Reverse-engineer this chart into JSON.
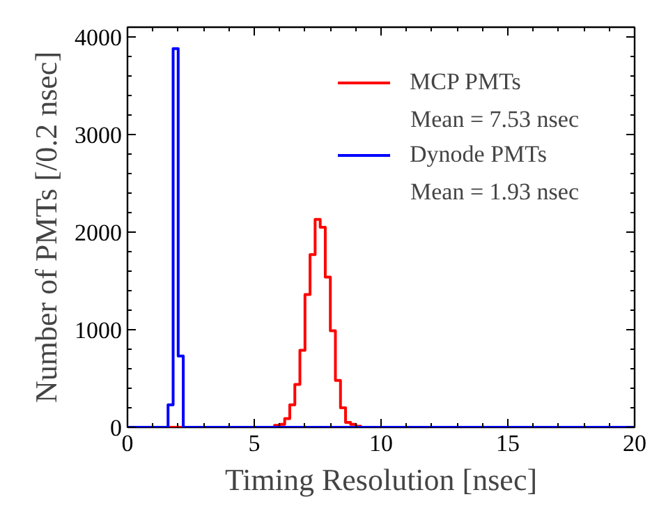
{
  "chart_data": {
    "type": "histogram",
    "xlabel": "Timing Resolution [nsec]",
    "ylabel": "Number of PMTs [/0.2 nsec]",
    "bins": [
      0,
      0.2,
      0.4,
      0.6,
      0.8,
      1,
      1.2,
      1.4,
      1.6,
      1.8,
      2,
      2.2,
      2.4,
      2.6,
      2.8,
      3,
      3.2,
      3.4,
      3.6,
      3.8,
      4,
      4.2,
      4.4,
      4.6,
      4.8,
      5,
      5.2,
      5.4,
      5.6,
      5.8,
      6,
      6.2,
      6.4,
      6.6,
      6.8,
      7,
      7.2,
      7.4,
      7.6,
      7.8,
      8,
      8.2,
      8.4,
      8.6,
      8.8,
      9,
      9.2,
      9.4,
      9.6,
      9.8,
      10,
      10.2,
      10.4,
      10.6,
      10.8,
      11,
      11.2,
      11.4,
      11.6,
      11.8,
      12,
      12.2,
      12.4,
      12.6,
      12.8,
      13,
      13.2,
      13.4,
      13.6,
      13.8,
      14,
      14.2,
      14.4,
      14.6,
      14.8,
      15,
      15.2,
      15.4,
      15.6,
      15.8,
      16,
      16.2,
      16.4,
      16.6,
      16.8,
      17,
      17.2,
      17.4,
      17.6,
      17.8,
      18,
      18.2,
      18.4,
      18.6,
      18.8,
      19,
      19.2,
      19.4,
      19.6,
      19.8,
      20
    ],
    "series": [
      {
        "name": "MCP PMTs",
        "color": "#ff0000",
        "values": [
          0,
          0,
          0,
          0,
          0,
          0,
          0,
          0,
          0,
          0,
          0,
          0,
          0,
          0,
          0,
          0,
          0,
          0,
          0,
          0,
          0,
          0,
          0,
          0,
          0,
          0,
          0,
          0,
          0,
          20,
          30,
          90,
          230,
          440,
          790,
          1360,
          1770,
          2130,
          2050,
          1540,
          990,
          480,
          200,
          50,
          30,
          10,
          0,
          0,
          0,
          0,
          0,
          0,
          0,
          0,
          0,
          0,
          0,
          0,
          0,
          0,
          0,
          0,
          0,
          0,
          0,
          0,
          0,
          0,
          0,
          0,
          0,
          0,
          0,
          0,
          0,
          0,
          0,
          0,
          0,
          0,
          0,
          0,
          0,
          0,
          0,
          0,
          0,
          0,
          0,
          0,
          0,
          0,
          0,
          0,
          0,
          0,
          0,
          0,
          0,
          0
        ]
      },
      {
        "name": "Dynode PMTs",
        "color": "#0000ff",
        "values": [
          0,
          0,
          0,
          0,
          0,
          0,
          0,
          0,
          230,
          3880,
          730,
          0,
          0,
          0,
          0,
          0,
          0,
          0,
          0,
          0,
          0,
          0,
          0,
          0,
          0,
          0,
          0,
          0,
          0,
          0,
          0,
          0,
          0,
          0,
          0,
          0,
          0,
          0,
          0,
          0,
          0,
          0,
          0,
          0,
          0,
          0,
          0,
          0,
          0,
          0,
          0,
          0,
          0,
          0,
          0,
          0,
          0,
          0,
          0,
          0,
          0,
          0,
          0,
          0,
          0,
          0,
          0,
          0,
          0,
          0,
          0,
          0,
          0,
          0,
          0,
          0,
          0,
          0,
          0,
          0,
          0,
          0,
          0,
          0,
          0,
          0,
          0,
          0,
          0,
          0,
          0,
          0,
          0,
          0,
          0,
          0,
          0,
          0,
          0,
          0
        ]
      }
    ],
    "annotations": [
      "Mean = 7.53 nsec",
      "Mean = 1.93 nsec"
    ],
    "xlim": [
      0,
      20
    ],
    "ylim": [
      0,
      4100
    ],
    "xticks": [
      0,
      5,
      10,
      15,
      20
    ],
    "yticks": [
      0,
      1000,
      2000,
      3000,
      4000
    ],
    "legend": "top right",
    "grid": false
  }
}
